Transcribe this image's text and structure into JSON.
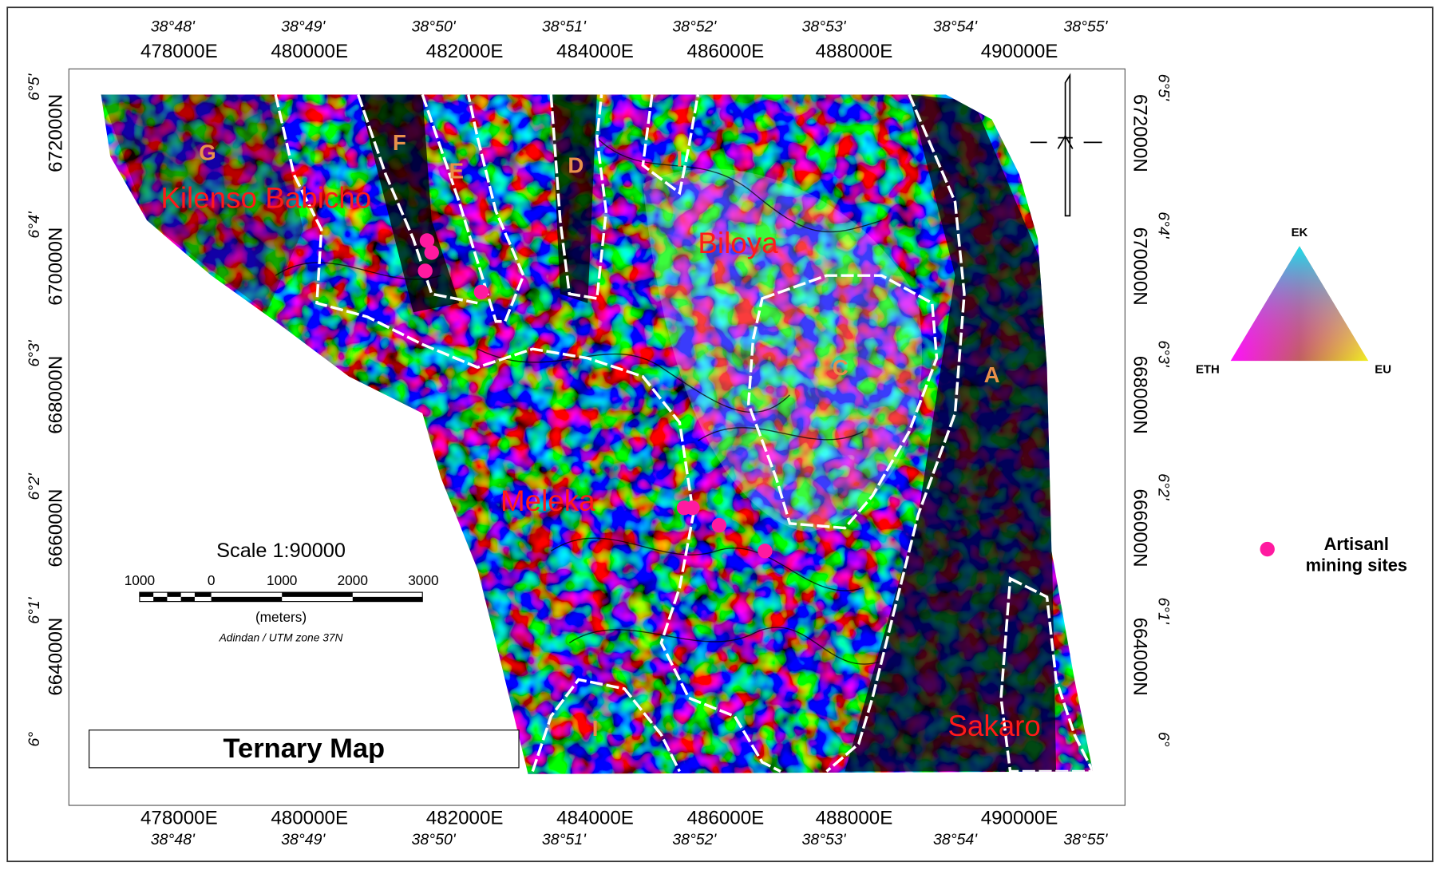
{
  "map": {
    "title": "Ternary Map",
    "longitude_ticks": [
      "38°48'",
      "38°49'",
      "38°50'",
      "38°51'",
      "38°52'",
      "38°53'",
      "38°54'",
      "38°55'"
    ],
    "easting_ticks": [
      "478000E",
      "480000E",
      "482000E",
      "484000E",
      "486000E",
      "488000E",
      "490000E"
    ],
    "latitude_ticks": [
      "6°5'",
      "6°4'",
      "6°3'",
      "6°2'",
      "6°1'",
      "6°"
    ],
    "northing_ticks": [
      "672000N",
      "670000N",
      "668000N",
      "666000N",
      "664000N"
    ],
    "places": [
      "Kilenso Babicho",
      "Biloya",
      "Meleka",
      "Sakaro"
    ],
    "zones": [
      "G",
      "F",
      "E",
      "D",
      "I",
      "C",
      "A",
      "I"
    ],
    "scale": {
      "title": "Scale 1:90000",
      "ticks": [
        "1000",
        "0",
        "1000",
        "2000",
        "3000"
      ],
      "unit": "(meters)",
      "projection": "Adindan / UTM zone 37N"
    },
    "ternary_legend": {
      "top": "EK",
      "left": "ETH",
      "right": "EU"
    },
    "site_legend": [
      "Artisanl",
      "mining sites"
    ]
  }
}
